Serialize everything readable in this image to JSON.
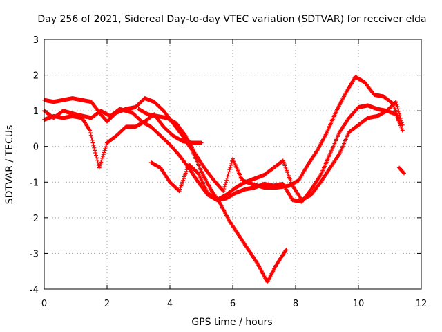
{
  "chart_data": {
    "type": "scatter",
    "title": "Day 256 of 2021, Sidereal Day-to-day VTEC variation (SDTVAR) for receiver elda",
    "xlabel": "GPS time / hours",
    "ylabel": "SDTVAR / TECUs",
    "xlim": [
      0,
      12
    ],
    "ylim": [
      -4,
      3
    ],
    "xticks": [
      0,
      2,
      4,
      6,
      8,
      10,
      12
    ],
    "yticks": [
      -4,
      -3,
      -2,
      -1,
      0,
      1,
      2,
      3
    ],
    "grid": true,
    "marker": "+",
    "marker_color": "#ff0000",
    "series": [
      {
        "x": [
          0.0,
          0.3,
          0.6,
          0.9,
          1.2,
          1.5,
          1.8,
          2.0,
          2.3,
          2.6,
          2.9,
          3.2,
          3.5,
          3.8,
          4.1,
          4.4,
          4.7,
          5.0,
          5.3,
          5.6,
          5.9,
          6.2,
          6.5,
          6.8,
          7.1,
          7.4,
          7.7
        ],
        "y": [
          1.3,
          1.25,
          1.3,
          1.35,
          1.3,
          1.25,
          0.9,
          0.7,
          0.95,
          1.05,
          1.1,
          1.35,
          1.25,
          1.0,
          0.65,
          0.3,
          -0.1,
          -0.7,
          -1.2,
          -1.6,
          -2.1,
          -2.5,
          -2.9,
          -3.3,
          -3.8,
          -3.3,
          -2.9
        ]
      },
      {
        "x": [
          0.0,
          0.3,
          0.6,
          0.9,
          1.2,
          1.45,
          1.75,
          2.0,
          2.3,
          2.6,
          2.9,
          3.2,
          3.5,
          3.8,
          4.1,
          4.4,
          4.7,
          5.0
        ],
        "y": [
          0.75,
          0.85,
          0.8,
          0.85,
          0.8,
          0.45,
          -0.6,
          0.1,
          0.3,
          0.55,
          0.55,
          0.7,
          0.9,
          0.55,
          0.3,
          0.15,
          0.1,
          0.1
        ]
      },
      {
        "x": [
          0.0,
          0.3,
          0.6,
          1.0,
          1.5,
          1.8,
          2.1,
          2.4,
          2.8,
          3.1,
          3.4,
          3.7,
          4.0,
          4.3,
          4.6,
          4.9,
          5.2,
          5.5,
          5.8,
          6.1,
          6.4,
          6.7,
          7.0,
          7.3,
          7.6,
          7.9,
          8.2,
          8.5,
          8.8,
          9.1,
          9.4,
          9.7,
          10.0,
          10.3,
          10.6,
          10.9,
          11.2,
          11.4
        ],
        "y": [
          1.0,
          0.8,
          1.0,
          0.9,
          0.8,
          1.0,
          0.85,
          1.05,
          0.95,
          0.7,
          0.55,
          0.3,
          0.05,
          -0.25,
          -0.6,
          -1.0,
          -1.35,
          -1.5,
          -1.45,
          -1.3,
          -1.2,
          -1.15,
          -1.05,
          -1.1,
          -1.05,
          -1.5,
          -1.55,
          -1.2,
          -0.8,
          -0.2,
          0.4,
          0.8,
          1.1,
          1.15,
          1.05,
          1.0,
          1.25,
          0.6
        ]
      },
      {
        "x": [
          3.4,
          3.7,
          4.0,
          4.3,
          4.6,
          4.9,
          5.2,
          5.5,
          5.8,
          6.1,
          6.4,
          6.7,
          7.0,
          7.3,
          7.6,
          7.9,
          8.2,
          8.5,
          8.8,
          9.1,
          9.4,
          9.7,
          10.0,
          10.3,
          10.6,
          10.9,
          11.2,
          11.4
        ],
        "y": [
          -0.45,
          -0.6,
          -1.0,
          -1.25,
          -0.5,
          -0.75,
          -1.3,
          -1.5,
          -1.35,
          -1.15,
          -1.0,
          -0.9,
          -0.8,
          -0.6,
          -0.4,
          -1.1,
          -1.5,
          -1.35,
          -1.0,
          -0.6,
          -0.2,
          0.4,
          0.6,
          0.8,
          0.85,
          1.0,
          0.9,
          0.45
        ]
      },
      {
        "x": [
          3.0,
          3.3,
          3.6,
          3.9,
          4.2,
          4.5,
          4.8,
          5.1,
          5.4,
          5.7,
          6.0,
          6.3,
          6.6,
          7.0,
          7.4,
          7.8,
          8.1,
          8.4,
          8.7,
          9.0,
          9.3,
          9.6,
          9.9,
          10.2,
          10.5,
          10.8,
          11.1,
          11.35
        ],
        "y": [
          1.05,
          0.9,
          0.85,
          0.8,
          0.65,
          0.3,
          -0.2,
          -0.6,
          -0.95,
          -1.25,
          -0.35,
          -0.95,
          -1.05,
          -1.15,
          -1.15,
          -1.1,
          -0.95,
          -0.5,
          -0.1,
          0.4,
          1.0,
          1.5,
          1.95,
          1.8,
          1.45,
          1.4,
          1.2,
          0.6
        ]
      },
      {
        "x": [
          11.3,
          11.45
        ],
        "y": [
          -0.6,
          -0.75
        ]
      }
    ]
  }
}
